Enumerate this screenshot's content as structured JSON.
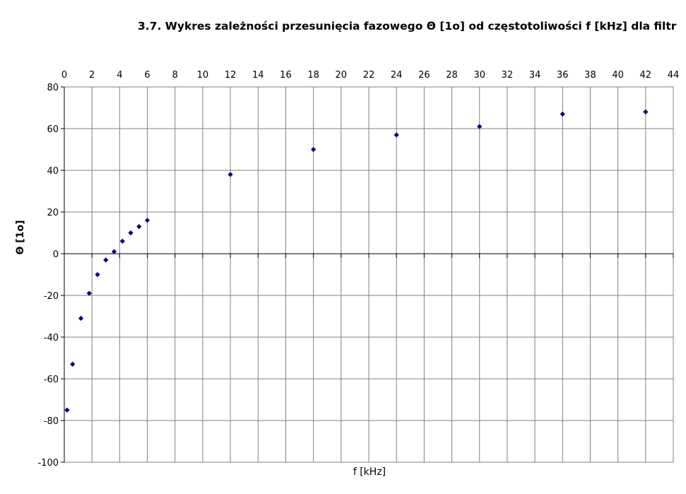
{
  "chart_data": {
    "type": "scatter",
    "title": "3.7. Wykres zależności przesunięcia fazowego Θ [1o] od częstotoliwości f [kHz] dla filtr",
    "xlabel": "f [kHz]",
    "ylabel": "Θ [1o]",
    "xlim": [
      0,
      44
    ],
    "ylim": [
      -100,
      80
    ],
    "x_ticks": [
      0,
      2,
      4,
      6,
      8,
      10,
      12,
      14,
      16,
      18,
      20,
      22,
      24,
      26,
      28,
      30,
      32,
      34,
      36,
      38,
      40,
      42,
      44
    ],
    "y_ticks": [
      80,
      60,
      40,
      20,
      0,
      -20,
      -40,
      -60,
      -80,
      -100
    ],
    "grid": true,
    "x_axis_position": "top",
    "marker": "diamond",
    "marker_color": "#000080",
    "series": [
      {
        "x": [
          0.2,
          0.6,
          1.2,
          1.8,
          2.4,
          3.0,
          3.6,
          4.2,
          4.8,
          5.4,
          6.0,
          12,
          18,
          24,
          30,
          36,
          42
        ],
        "values": [
          -75,
          -53,
          -31,
          -19,
          -10,
          -3,
          1,
          6,
          10,
          13,
          16,
          38,
          50,
          57,
          61,
          67,
          68
        ]
      }
    ]
  }
}
